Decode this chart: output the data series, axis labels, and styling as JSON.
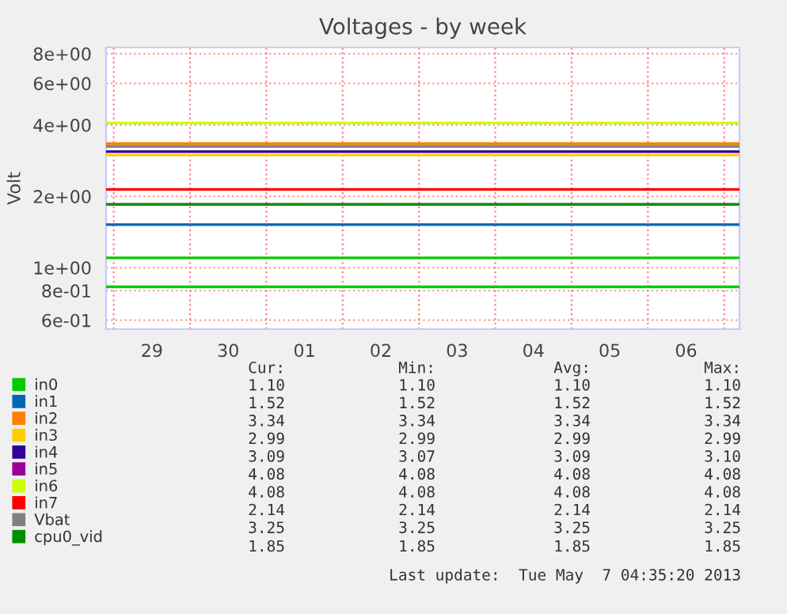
{
  "chart_data": {
    "type": "line",
    "title": "Voltages - by week",
    "ylabel": "Volt",
    "xlim": [
      "2013-04-28T21:36",
      "2013-05-07T04:48"
    ],
    "xticks": [
      {
        "value": "2013-04-29T12:00",
        "label": "29"
      },
      {
        "value": "2013-04-30T12:00",
        "label": "30"
      },
      {
        "value": "2013-05-01T12:00",
        "label": "01"
      },
      {
        "value": "2013-05-02T12:00",
        "label": "02"
      },
      {
        "value": "2013-05-03T12:00",
        "label": "03"
      },
      {
        "value": "2013-05-04T12:00",
        "label": "04"
      },
      {
        "value": "2013-05-05T12:00",
        "label": "05"
      },
      {
        "value": "2013-05-06T12:00",
        "label": "06"
      }
    ],
    "log": "y",
    "ylim": [
      0.55,
      8.5
    ],
    "yticks": [
      {
        "value": 0.6,
        "label": "6e-01"
      },
      {
        "value": 0.8,
        "label": "8e-01"
      },
      {
        "value": 1,
        "label": "1e+00"
      },
      {
        "value": 2,
        "label": "2e+00"
      },
      {
        "value": 4,
        "label": "4e+00"
      },
      {
        "value": 6,
        "label": "6e+00"
      },
      {
        "value": 8,
        "label": "8e+00"
      }
    ],
    "grid": "y",
    "legend": "bottom",
    "marker": "none",
    "line_style": "solid",
    "x": [
      "2013-04-28T21:36",
      "2013-05-07T04:35"
    ],
    "series": [
      {
        "name": "in0",
        "color": "#00cc00",
        "values": [
          1.1,
          1.1
        ]
      },
      {
        "name": "in1",
        "color": "#0066b3",
        "values": [
          1.52,
          1.52
        ]
      },
      {
        "name": "in2",
        "color": "#ff8000",
        "values": [
          3.34,
          3.34
        ]
      },
      {
        "name": "in3",
        "color": "#ffcc00",
        "values": [
          2.99,
          2.99
        ]
      },
      {
        "name": "in4",
        "color": "#330099",
        "values": [
          3.09,
          3.09
        ]
      },
      {
        "name": "in5",
        "color": "#990099",
        "values": [
          null,
          null
        ]
      },
      {
        "name": "in6",
        "color": "#ccff00",
        "values": [
          4.08,
          4.08
        ]
      },
      {
        "name": "in7",
        "color": "#ff0000",
        "values": [
          2.14,
          2.14
        ]
      },
      {
        "name": "Vbat",
        "color": "#808080",
        "values": [
          3.25,
          3.25
        ]
      },
      {
        "name": "cpu0_vid",
        "color": "#008f00",
        "values": [
          1.85,
          1.85
        ]
      },
      {
        "color": "#00cc00",
        "values": [
          0.83,
          0.83
        ]
      }
    ],
    "ref_lines": [
      {
        "axis": "x",
        "value": "2013-04-29",
        "color": "#ff8080",
        "line_style": "dotted"
      },
      {
        "axis": "x",
        "value": "2013-04-30",
        "color": "#ff8080",
        "line_style": "dotted"
      },
      {
        "axis": "x",
        "value": "2013-05-01",
        "color": "#ff8080",
        "line_style": "dotted"
      },
      {
        "axis": "x",
        "value": "2013-05-02",
        "color": "#ff8080",
        "line_style": "dotted"
      },
      {
        "axis": "x",
        "value": "2013-05-03",
        "color": "#ff8080",
        "line_style": "dotted"
      },
      {
        "axis": "x",
        "value": "2013-05-04",
        "color": "#ff8080",
        "line_style": "dotted"
      },
      {
        "axis": "x",
        "value": "2013-05-05",
        "color": "#ff8080",
        "line_style": "dotted"
      },
      {
        "axis": "x",
        "value": "2013-05-06",
        "color": "#ff8080",
        "line_style": "dotted"
      },
      {
        "axis": "x",
        "value": "2013-05-07",
        "color": "#ff8080",
        "line_style": "dotted"
      }
    ],
    "annotations": [
      "Cur:",
      "Min:",
      "Avg:",
      "Max:",
      "1.10",
      "1.10",
      "1.10",
      "1.10",
      "1.52",
      "1.52",
      "1.52",
      "1.52",
      "3.34",
      "3.34",
      "3.34",
      "3.34",
      "2.99",
      "2.99",
      "2.99",
      "2.99",
      "3.09",
      "3.07",
      "3.09",
      "3.10",
      "4.08",
      "4.08",
      "4.08",
      "4.08",
      "4.08",
      "4.08",
      "4.08",
      "4.08",
      "2.14",
      "2.14",
      "2.14",
      "2.14",
      "3.25",
      "3.25",
      "3.25",
      "3.25",
      "1.85",
      "1.85",
      "1.85",
      "1.85",
      "Last update:  Tue May  7 04:35:20 2013"
    ]
  }
}
